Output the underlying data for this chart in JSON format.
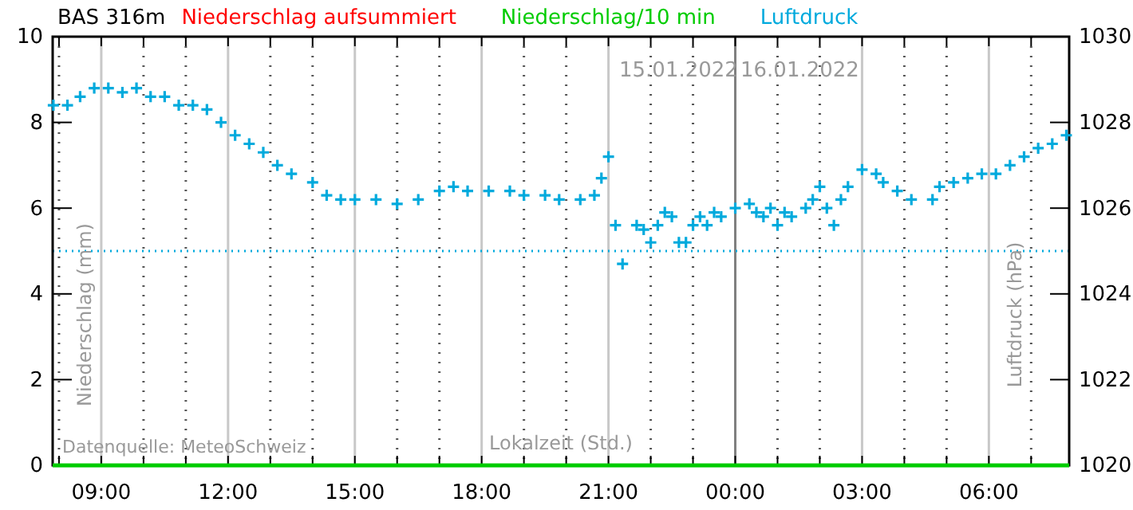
{
  "chart_data": {
    "type": "scatter",
    "title": "BAS 316m",
    "xlabel": "Lokalzeit (Std.)",
    "ylabel": "Niederschlag (mm)",
    "y2label": "Luftdruck (hPa)",
    "xlim": [
      "2022-01-15T07:51",
      "2022-01-16T07:54"
    ],
    "xticks": [
      {
        "value": "2022-01-15T08:00",
        "label": null
      },
      {
        "value": "2022-01-15T09:00",
        "label": "09:00"
      },
      {
        "value": "2022-01-15T10:00",
        "label": null
      },
      {
        "value": "2022-01-15T11:00",
        "label": null
      },
      {
        "value": "2022-01-15T12:00",
        "label": "12:00"
      },
      {
        "value": "2022-01-15T13:00",
        "label": null
      },
      {
        "value": "2022-01-15T14:00",
        "label": null
      },
      {
        "value": "2022-01-15T15:00",
        "label": "15:00"
      },
      {
        "value": "2022-01-15T16:00",
        "label": null
      },
      {
        "value": "2022-01-15T17:00",
        "label": null
      },
      {
        "value": "2022-01-15T18:00",
        "label": "18:00"
      },
      {
        "value": "2022-01-15T19:00",
        "label": null
      },
      {
        "value": "2022-01-15T20:00",
        "label": null
      },
      {
        "value": "2022-01-15T21:00",
        "label": "21:00"
      },
      {
        "value": "2022-01-15T22:00",
        "label": null
      },
      {
        "value": "2022-01-15T23:00",
        "label": null
      },
      {
        "value": "2022-01-16T00:00",
        "label": "00:00"
      },
      {
        "value": "2022-01-16T01:00",
        "label": null
      },
      {
        "value": "2022-01-16T02:00",
        "label": null
      },
      {
        "value": "2022-01-16T03:00",
        "label": "03:00"
      },
      {
        "value": "2022-01-16T04:00",
        "label": null
      },
      {
        "value": "2022-01-16T05:00",
        "label": null
      },
      {
        "value": "2022-01-16T06:00",
        "label": "06:00"
      },
      {
        "value": "2022-01-16T07:00",
        "label": null
      }
    ],
    "ylim": [
      0,
      10
    ],
    "yticks": [
      0,
      2,
      4,
      6,
      8,
      10
    ],
    "y2lim": [
      1020,
      1030
    ],
    "y2ticks": [
      1020,
      1022,
      1024,
      1026,
      1028,
      1030
    ],
    "grid": "x",
    "legend": "top",
    "ref_lines": [
      {
        "axis": "x",
        "value": "2022-01-16T00:00",
        "color": "#808080"
      },
      {
        "axis": "y2",
        "value": 1025,
        "color": "#00aadd",
        "line_style": "dotted"
      }
    ],
    "annotations": [
      "15.01.2022",
      "16.01.2022",
      "Datenquelle: MeteoSchweiz"
    ],
    "x": [
      "2022-01-15T07:51",
      "2022-01-16T07:54"
    ],
    "series": [
      {
        "name": "Niederschlag aufsummiert",
        "type": "line",
        "color": "#ff0000",
        "values": [
          null,
          null
        ]
      },
      {
        "name": "Niederschlag/10 min",
        "type": "line",
        "color": "#00cc00",
        "values": [
          0,
          0
        ]
      },
      {
        "name": "Luftdruck",
        "axis": "y2",
        "color": "#00aadd",
        "marker": "cross",
        "x": [
          "2022-01-15T07:52",
          "2022-01-15T08:12",
          "2022-01-15T08:30",
          "2022-01-15T08:50",
          "2022-01-15T09:10",
          "2022-01-15T09:30",
          "2022-01-15T09:50",
          "2022-01-15T10:10",
          "2022-01-15T10:30",
          "2022-01-15T10:50",
          "2022-01-15T11:10",
          "2022-01-15T11:30",
          "2022-01-15T11:50",
          "2022-01-15T12:10",
          "2022-01-15T12:30",
          "2022-01-15T12:50",
          "2022-01-15T13:10",
          "2022-01-15T13:30",
          "2022-01-15T14:00",
          "2022-01-15T14:20",
          "2022-01-15T14:40",
          "2022-01-15T15:00",
          "2022-01-15T15:30",
          "2022-01-15T16:00",
          "2022-01-15T16:30",
          "2022-01-15T17:00",
          "2022-01-15T17:20",
          "2022-01-15T17:40",
          "2022-01-15T18:10",
          "2022-01-15T18:40",
          "2022-01-15T19:00",
          "2022-01-15T19:30",
          "2022-01-15T19:50",
          "2022-01-15T20:20",
          "2022-01-15T20:40",
          "2022-01-15T20:50",
          "2022-01-15T21:00",
          "2022-01-15T21:10",
          "2022-01-15T21:20",
          "2022-01-15T21:40",
          "2022-01-15T21:50",
          "2022-01-15T22:00",
          "2022-01-15T22:10",
          "2022-01-15T22:20",
          "2022-01-15T22:30",
          "2022-01-15T22:40",
          "2022-01-15T22:50",
          "2022-01-15T23:00",
          "2022-01-15T23:10",
          "2022-01-15T23:20",
          "2022-01-15T23:30",
          "2022-01-15T23:40",
          "2022-01-16T00:00",
          "2022-01-16T00:20",
          "2022-01-16T00:30",
          "2022-01-16T00:40",
          "2022-01-16T00:50",
          "2022-01-16T01:00",
          "2022-01-16T01:10",
          "2022-01-16T01:20",
          "2022-01-16T01:40",
          "2022-01-16T01:50",
          "2022-01-16T02:00",
          "2022-01-16T02:10",
          "2022-01-16T02:20",
          "2022-01-16T02:30",
          "2022-01-16T02:40",
          "2022-01-16T03:00",
          "2022-01-16T03:20",
          "2022-01-16T03:30",
          "2022-01-16T03:50",
          "2022-01-16T04:10",
          "2022-01-16T04:40",
          "2022-01-16T04:50",
          "2022-01-16T05:10",
          "2022-01-16T05:30",
          "2022-01-16T05:50",
          "2022-01-16T06:10",
          "2022-01-16T06:30",
          "2022-01-16T06:50",
          "2022-01-16T07:10",
          "2022-01-16T07:30",
          "2022-01-16T07:50"
        ],
        "values": [
          1028.4,
          1028.4,
          1028.6,
          1028.8,
          1028.8,
          1028.7,
          1028.8,
          1028.6,
          1028.6,
          1028.4,
          1028.4,
          1028.3,
          1028.0,
          1027.7,
          1027.5,
          1027.3,
          1027.0,
          1026.8,
          1026.6,
          1026.3,
          1026.2,
          1026.2,
          1026.2,
          1026.1,
          1026.2,
          1026.4,
          1026.5,
          1026.4,
          1026.4,
          1026.4,
          1026.3,
          1026.3,
          1026.2,
          1026.2,
          1026.3,
          1026.7,
          1027.2,
          1025.6,
          1024.7,
          1025.6,
          1025.5,
          1025.2,
          1025.6,
          1025.9,
          1025.8,
          1025.2,
          1025.2,
          1025.6,
          1025.8,
          1025.6,
          1025.9,
          1025.8,
          1026.0,
          1026.1,
          1025.9,
          1025.8,
          1026.0,
          1025.6,
          1025.9,
          1025.8,
          1026.0,
          1026.2,
          1026.5,
          1026.0,
          1025.6,
          1026.2,
          1026.5,
          1026.9,
          1026.8,
          1026.6,
          1026.4,
          1026.2,
          1026.2,
          1026.5,
          1026.6,
          1026.7,
          1026.8,
          1026.8,
          1027.0,
          1027.2,
          1027.4,
          1027.5,
          1027.7
        ]
      }
    ]
  }
}
